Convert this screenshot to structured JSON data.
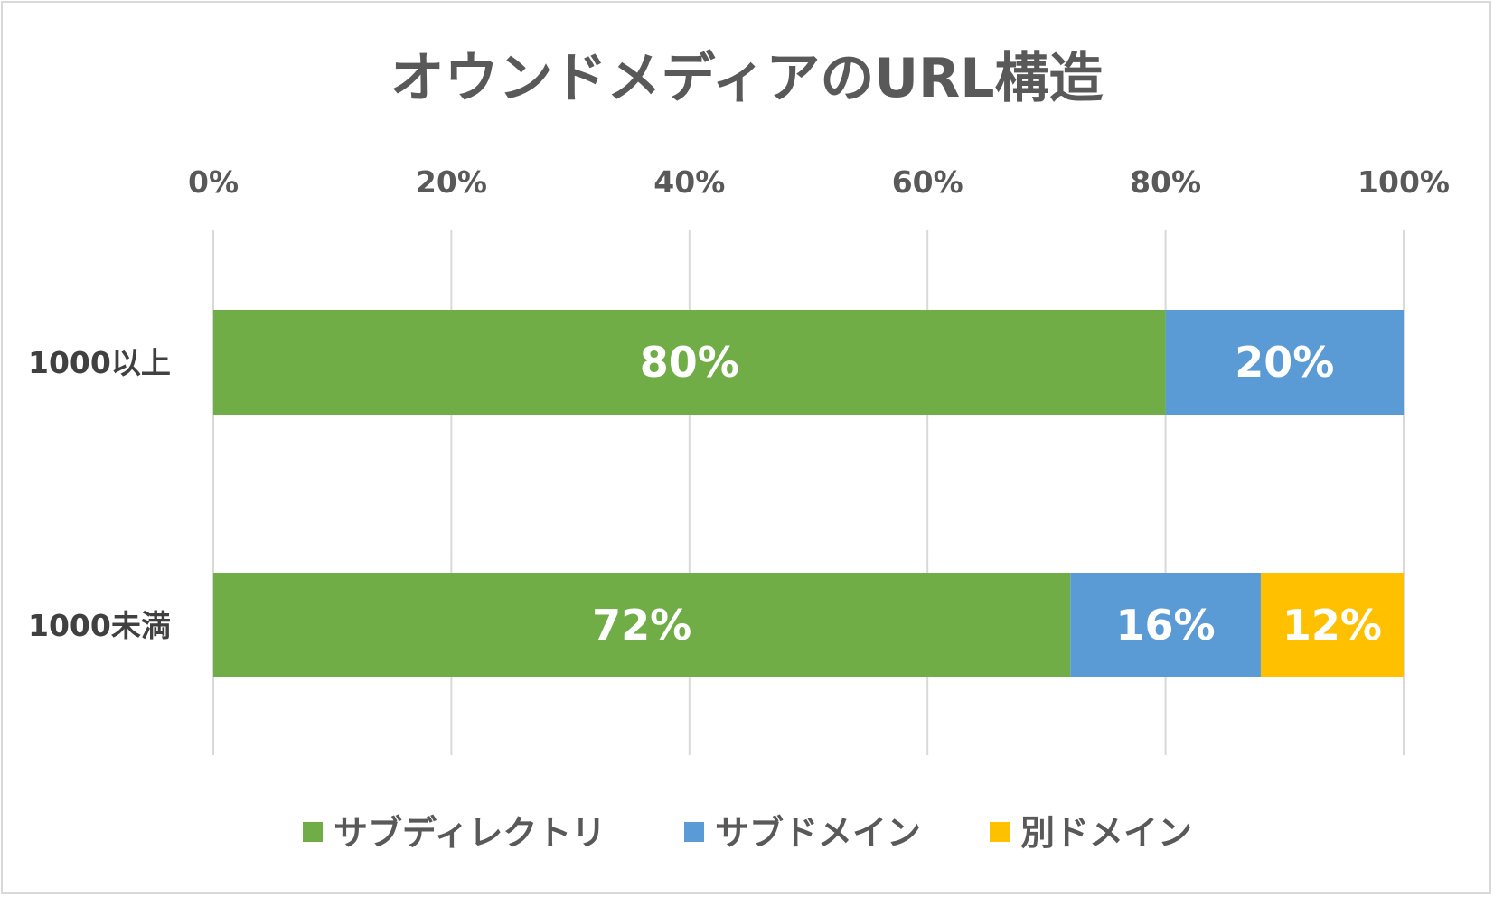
{
  "chart_data": {
    "type": "bar",
    "orientation": "horizontal",
    "stacked": "percent",
    "title": "オウンドメディアのURL構造",
    "categories": [
      "1000以上",
      "1000未満"
    ],
    "series": [
      {
        "name": "サブディレクトリ",
        "values": [
          80,
          72
        ],
        "labels": [
          "80%",
          "72%"
        ],
        "color": "#70AD47"
      },
      {
        "name": "サブドメイン",
        "values": [
          20,
          16
        ],
        "labels": [
          "20%",
          "16%"
        ],
        "color": "#5B9BD5"
      },
      {
        "name": "別ドメイン",
        "values": [
          0,
          12
        ],
        "labels": [
          "",
          "12%"
        ],
        "color": "#FFC000"
      }
    ],
    "xlim": [
      0,
      100
    ],
    "x_ticks": [
      "0%",
      "20%",
      "40%",
      "60%",
      "80%",
      "100%"
    ],
    "x_axis_position": "top",
    "grid": true,
    "legend_position": "bottom"
  }
}
